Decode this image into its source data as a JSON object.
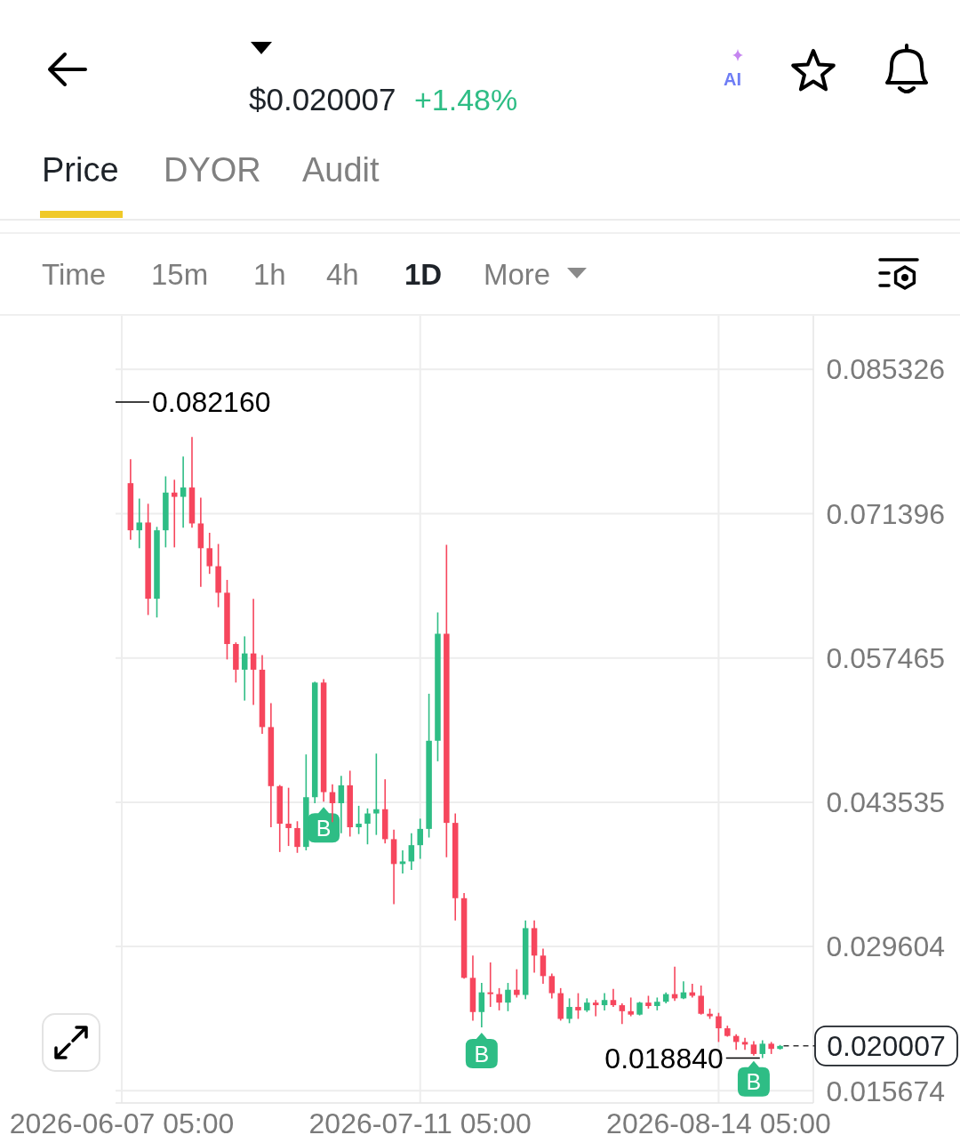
{
  "chart_data": {
    "type": "candlestick",
    "title": "$0.020007",
    "subtitle": "+1.48%",
    "annotations": [
      "Price",
      "DYOR",
      "Audit",
      "Time",
      "15m",
      "1h",
      "4h",
      "1D",
      "More",
      "AI",
      "0.082160",
      {
        "text": "0.018840",
        "x": "2026-08-19T05:00",
        "y": 0.01884
      },
      {
        "text": "B",
        "x": "2026-06-30T05:00",
        "y": 0.0436
      },
      {
        "text": "B",
        "x": "2026-07-18T05:00",
        "y": 0.02179
      },
      {
        "text": "B",
        "x": "2026-08-18T05:00",
        "y": 0.01907
      }
    ],
    "x": [
      "2026-06-08T05:00",
      "2026-06-09T05:00",
      "2026-06-10T05:00",
      "2026-06-11T05:00",
      "2026-06-12T05:00",
      "2026-06-13T05:00",
      "2026-06-14T05:00",
      "2026-06-15T05:00",
      "2026-06-16T05:00",
      "2026-06-17T05:00",
      "2026-06-18T05:00",
      "2026-06-19T05:00",
      "2026-06-20T05:00",
      "2026-06-21T05:00",
      "2026-06-22T05:00",
      "2026-06-23T05:00",
      "2026-06-24T05:00",
      "2026-06-25T05:00",
      "2026-06-26T05:00",
      "2026-06-27T05:00",
      "2026-06-28T05:00",
      "2026-06-29T05:00",
      "2026-06-30T05:00",
      "2026-07-01T05:00",
      "2026-07-02T05:00",
      "2026-07-03T05:00",
      "2026-07-04T05:00",
      "2026-07-05T05:00",
      "2026-07-06T05:00",
      "2026-07-07T05:00",
      "2026-07-08T05:00",
      "2026-07-09T05:00",
      "2026-07-10T05:00",
      "2026-07-11T05:00",
      "2026-07-12T05:00",
      "2026-07-13T05:00",
      "2026-07-14T05:00",
      "2026-07-15T05:00",
      "2026-07-16T05:00",
      "2026-07-17T05:00",
      "2026-07-18T05:00",
      "2026-07-19T05:00",
      "2026-07-20T05:00",
      "2026-07-21T05:00",
      "2026-07-22T05:00",
      "2026-07-23T05:00",
      "2026-07-24T05:00",
      "2026-07-25T05:00",
      "2026-07-26T05:00",
      "2026-07-27T05:00",
      "2026-07-28T05:00",
      "2026-07-29T05:00",
      "2026-07-30T05:00",
      "2026-07-31T05:00",
      "2026-08-01T05:00",
      "2026-08-02T05:00",
      "2026-08-03T05:00",
      "2026-08-04T05:00",
      "2026-08-05T05:00",
      "2026-08-06T05:00",
      "2026-08-07T05:00",
      "2026-08-08T05:00",
      "2026-08-09T05:00",
      "2026-08-10T05:00",
      "2026-08-11T05:00",
      "2026-08-12T05:00",
      "2026-08-13T05:00",
      "2026-08-14T05:00",
      "2026-08-15T05:00",
      "2026-08-16T05:00",
      "2026-08-17T05:00",
      "2026-08-18T05:00",
      "2026-08-19T05:00",
      "2026-08-20T05:00",
      "2026-08-21T05:00"
    ],
    "ohlc": [
      [
        0.07434,
        0.07665,
        0.06888,
        0.06979
      ],
      [
        0.06979,
        0.07285,
        0.06806,
        0.07054
      ],
      [
        0.07054,
        0.07235,
        0.06161,
        0.06318
      ],
      [
        0.06318,
        0.07012,
        0.06137,
        0.06979
      ],
      [
        0.06979,
        0.075,
        0.06814,
        0.07343
      ],
      [
        0.07343,
        0.07467,
        0.06814,
        0.07302
      ],
      [
        0.07302,
        0.0769,
        0.07004,
        0.07392
      ],
      [
        0.07392,
        0.0788,
        0.07004,
        0.07045
      ],
      [
        0.07045,
        0.07293,
        0.06434,
        0.06806
      ],
      [
        0.06806,
        0.06955,
        0.06558,
        0.06632
      ],
      [
        0.06632,
        0.06847,
        0.06236,
        0.06376
      ],
      [
        0.06376,
        0.065,
        0.05732,
        0.05881
      ],
      [
        0.05881,
        0.05897,
        0.05509,
        0.05633
      ],
      [
        0.05633,
        0.05955,
        0.05335,
        0.0579
      ],
      [
        0.0579,
        0.06318,
        0.05294,
        0.05633
      ],
      [
        0.05633,
        0.05773,
        0.05013,
        0.05079
      ],
      [
        0.05079,
        0.0531,
        0.04112,
        0.04509
      ],
      [
        0.04509,
        0.0452,
        0.03873,
        0.04146
      ],
      [
        0.04146,
        0.04493,
        0.03931,
        0.04104
      ],
      [
        0.04104,
        0.0417,
        0.03865,
        0.03922
      ],
      [
        0.03922,
        0.04815,
        0.03889,
        0.04402
      ],
      [
        0.04402,
        0.05517,
        0.04344,
        0.05509
      ],
      [
        0.05509,
        0.05542,
        0.0436,
        0.04451
      ],
      [
        0.04451,
        0.04526,
        0.04162,
        0.04344
      ],
      [
        0.04344,
        0.04608,
        0.04055,
        0.04517
      ],
      [
        0.04517,
        0.04658,
        0.04022,
        0.04112
      ],
      [
        0.04112,
        0.04319,
        0.04046,
        0.04146
      ],
      [
        0.04146,
        0.04294,
        0.03947,
        0.04245
      ],
      [
        0.04245,
        0.04823,
        0.04038,
        0.04286
      ],
      [
        0.04286,
        0.04575,
        0.03956,
        0.03997
      ],
      [
        0.03997,
        0.04088,
        0.03369,
        0.03757
      ],
      [
        0.03757,
        0.03889,
        0.03666,
        0.03782
      ],
      [
        0.03782,
        0.04055,
        0.03699,
        0.03939
      ],
      [
        0.03939,
        0.04195,
        0.03807,
        0.04096
      ],
      [
        0.04096,
        0.05401,
        0.04013,
        0.04947
      ],
      [
        0.04947,
        0.06186,
        0.04749,
        0.0598
      ],
      [
        0.0598,
        0.06839,
        0.03823,
        0.04154
      ],
      [
        0.04154,
        0.04245,
        0.03212,
        0.03427
      ],
      [
        0.03427,
        0.03476,
        0.0265,
        0.02658
      ],
      [
        0.02658,
        0.02873,
        0.02245,
        0.02328
      ],
      [
        0.02328,
        0.02609,
        0.02179,
        0.02518
      ],
      [
        0.02518,
        0.02807,
        0.02377,
        0.02501
      ],
      [
        0.02501,
        0.02559,
        0.02344,
        0.02419
      ],
      [
        0.02419,
        0.02609,
        0.02336,
        0.02543
      ],
      [
        0.02543,
        0.02741,
        0.02468,
        0.02493
      ],
      [
        0.02493,
        0.03212,
        0.02452,
        0.03138
      ],
      [
        0.03138,
        0.03212,
        0.02708,
        0.02873
      ],
      [
        0.02873,
        0.02939,
        0.02601,
        0.02675
      ],
      [
        0.02675,
        0.027,
        0.0246,
        0.0251
      ],
      [
        0.0251,
        0.02559,
        0.02245,
        0.02262
      ],
      [
        0.02262,
        0.0246,
        0.0222,
        0.02377
      ],
      [
        0.02377,
        0.0251,
        0.02262,
        0.02344
      ],
      [
        0.02344,
        0.0246,
        0.02328,
        0.02419
      ],
      [
        0.02419,
        0.02444,
        0.02287,
        0.02394
      ],
      [
        0.02394,
        0.0251,
        0.02344,
        0.02444
      ],
      [
        0.02444,
        0.02551,
        0.02377,
        0.02394
      ],
      [
        0.02394,
        0.02411,
        0.02212,
        0.02336
      ],
      [
        0.02336,
        0.02468,
        0.02287,
        0.02303
      ],
      [
        0.02303,
        0.02427,
        0.02295,
        0.02419
      ],
      [
        0.02419,
        0.02485,
        0.02361,
        0.02386
      ],
      [
        0.02386,
        0.02468,
        0.02344,
        0.02427
      ],
      [
        0.02427,
        0.02518,
        0.02411,
        0.02501
      ],
      [
        0.02501,
        0.02766,
        0.02435,
        0.0246
      ],
      [
        0.0246,
        0.02625,
        0.02452,
        0.02518
      ],
      [
        0.02518,
        0.02601,
        0.02468,
        0.02485
      ],
      [
        0.02485,
        0.02584,
        0.02303,
        0.02311
      ],
      [
        0.02311,
        0.02361,
        0.02262,
        0.02287
      ],
      [
        0.02287,
        0.0232,
        0.02039,
        0.02171
      ],
      [
        0.02171,
        0.02196,
        0.0209,
        0.02097
      ],
      [
        0.02097,
        0.02113,
        0.01964,
        0.02039
      ],
      [
        0.02039,
        0.0208,
        0.01964,
        0.02014
      ],
      [
        0.02014,
        0.02047,
        0.01907,
        0.01923
      ],
      [
        0.01923,
        0.02055,
        0.01884,
        0.02022
      ],
      [
        0.02022,
        0.02039,
        0.01923,
        0.01972
      ],
      [
        0.01972,
        0.0201,
        0.01965,
        0.020007
      ]
    ],
    "colors": [
      "#f6465d",
      "#2ebd85",
      "#f6465d",
      "#2ebd85",
      "#2ebd85",
      "#f6465d",
      "#2ebd85",
      "#f6465d",
      "#f6465d",
      "#f6465d",
      "#f6465d",
      "#f6465d",
      "#f6465d",
      "#2ebd85",
      "#f6465d",
      "#f6465d",
      "#f6465d",
      "#f6465d",
      "#f6465d",
      "#f6465d",
      "#2ebd85",
      "#2ebd85",
      "#f6465d",
      "#f6465d",
      "#2ebd85",
      "#f6465d",
      "#2ebd85",
      "#2ebd85",
      "#2ebd85",
      "#f6465d",
      "#f6465d",
      "#2ebd85",
      "#2ebd85",
      "#2ebd85",
      "#2ebd85",
      "#2ebd85",
      "#f6465d",
      "#f6465d",
      "#f6465d",
      "#f6465d",
      "#2ebd85",
      "#f6465d",
      "#f6465d",
      "#2ebd85",
      "#f6465d",
      "#2ebd85",
      "#f6465d",
      "#f6465d",
      "#f6465d",
      "#f6465d",
      "#2ebd85",
      "#f6465d",
      "#2ebd85",
      "#f6465d",
      "#2ebd85",
      "#f6465d",
      "#f6465d",
      "#f6465d",
      "#2ebd85",
      "#f6465d",
      "#2ebd85",
      "#2ebd85",
      "#f6465d",
      "#2ebd85",
      "#f6465d",
      "#f6465d",
      "#f6465d",
      "#f6465d",
      "#f6465d",
      "#f6465d",
      "#f6465d",
      "#f6465d",
      "#2ebd85",
      "#f6465d",
      "#2ebd85"
    ],
    "xlim": [
      "2026-06-06T12:00",
      "2026-08-25T00:00"
    ],
    "xticks": [
      {
        "value": "2026-06-07T05:00",
        "label": "2026-06-07 05:00"
      },
      {
        "value": "2026-07-11T05:00",
        "label": "2026-07-11 05:00"
      },
      {
        "value": "2026-08-14T05:00",
        "label": "2026-08-14 05:00"
      }
    ],
    "ylim": [
      0.0145,
      0.0905
    ],
    "yticks": [
      0.085326,
      0.071396,
      0.057465,
      0.043535,
      0.029604,
      0.015674
    ],
    "grid": true,
    "ref_lines": [
      {
        "axis": "y",
        "value": 0.020007,
        "label": "0.020007",
        "line_style": "dashed"
      }
    ]
  }
}
